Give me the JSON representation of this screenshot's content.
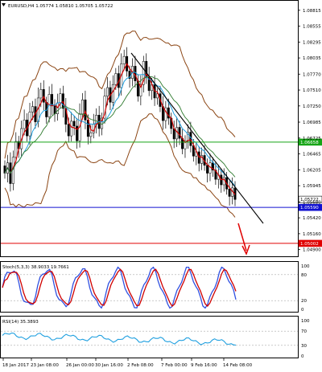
{
  "symbol_label": "EURUSD,H4  1.05774 1.05810 1.05705 1.05722",
  "price_axis": {
    "ticks": [
      "1.08815",
      "1.08555",
      "1.08295",
      "1.08035",
      "1.07770",
      "1.07510",
      "1.07250",
      "1.06985",
      "1.06725",
      "1.06465",
      "1.06205",
      "1.05945",
      "1.05680",
      "1.05420",
      "1.05160",
      "1.04900"
    ],
    "min": 1.0483,
    "max": 1.0893
  },
  "levels": [
    {
      "name": "resistance",
      "value": 1.06658,
      "label": "1.06658",
      "color": "#16a516"
    },
    {
      "name": "current",
      "value": 1.05722,
      "label": "1.05722",
      "color": "#ffffff"
    },
    {
      "name": "support",
      "value": 1.0559,
      "label": "1.05590",
      "color": "#1010d0"
    },
    {
      "name": "target",
      "value": 1.05002,
      "label": "1.05002",
      "color": "#e00000"
    }
  ],
  "time_axis": [
    "18 Jan 2017",
    "23 Jan 08:00",
    "26 Jan 00:00",
    "30 Jan 16:00",
    "2 Feb 08:00",
    "7 Feb 00:00",
    "9 Feb 16:00",
    "14 Feb 08:00"
  ],
  "stoch": {
    "label": "Stoch(5,3,3) 38.9033 19.7661",
    "levels": [
      "100",
      "80",
      "20",
      "0"
    ]
  },
  "rsi": {
    "label": "RSI(14) 35.3893",
    "levels": [
      "100",
      "70",
      "30",
      "0"
    ]
  },
  "colors": {
    "bull": "#000000",
    "bear": "#000000",
    "ma_red": "#d00000",
    "ma_blue": "#20a0e0",
    "bands": "#8b4513",
    "trendline": "#000000",
    "stoch_main": "#3050e0",
    "stoch_signal": "#d00000",
    "rsi": "#20a0e0"
  },
  "chart_data": {
    "type": "candlestick",
    "closes": [
      1.0615,
      1.0632,
      1.0598,
      1.0641,
      1.0667,
      1.0655,
      1.0688,
      1.0702,
      1.0676,
      1.0715,
      1.0724,
      1.0699,
      1.0738,
      1.0752,
      1.0731,
      1.0707,
      1.0744,
      1.0725,
      1.0712,
      1.073,
      1.0745,
      1.0721,
      1.0695,
      1.0676,
      1.07,
      1.0692,
      1.0668,
      1.0712,
      1.0735,
      1.0702,
      1.0675,
      1.0681,
      1.0695,
      1.071,
      1.0688,
      1.0705,
      1.0741,
      1.0755,
      1.0731,
      1.076,
      1.0778,
      1.0755,
      1.0794,
      1.0806,
      1.0782,
      1.077,
      1.079,
      1.0766,
      1.0741,
      1.076,
      1.0798,
      1.0772,
      1.075,
      1.076,
      1.0738,
      1.0745,
      1.0724,
      1.0701,
      1.0722,
      1.0705,
      1.0688,
      1.0671,
      1.069,
      1.0672,
      1.0655,
      1.0668,
      1.0682,
      1.066,
      1.0643,
      1.065,
      1.0631,
      1.0644,
      1.0628,
      1.0615,
      1.0632,
      1.062,
      1.0605,
      1.0612,
      1.0596,
      1.0608,
      1.0589,
      1.0577,
      1.0591,
      1.0572
    ]
  }
}
